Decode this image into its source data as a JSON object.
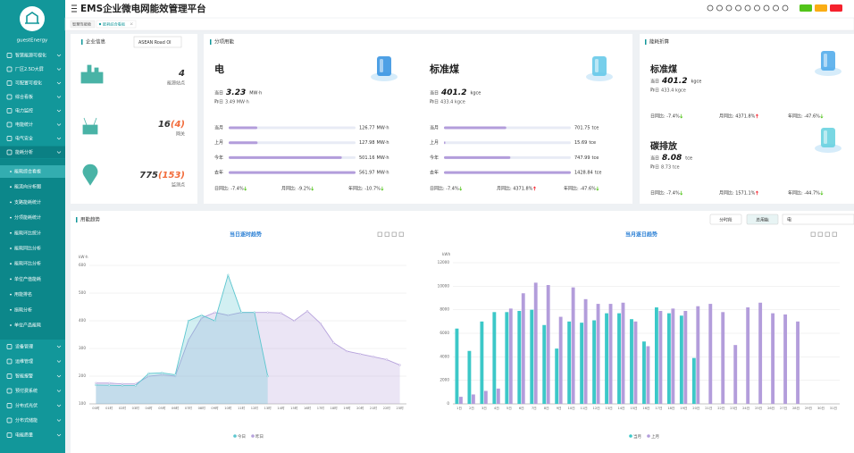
{
  "sidebar": {
    "user": "guestEnergy",
    "menu": [
      "智慧能源可视化",
      "厂区2.5D大屏",
      "可配置可视化",
      "综合看板",
      "电力监控",
      "电能统计",
      "电气安全",
      "能耗分析"
    ],
    "submenu": [
      "能耗综合看板",
      "能流向分析图",
      "支路能耗统计",
      "分项能耗统计",
      "能耗环比统计",
      "能耗同比分析",
      "能耗环比分析",
      "单位产值能耗",
      "用能排名",
      "损耗分析",
      "单位产品能耗"
    ],
    "menu2": [
      "设备管理",
      "运维管理",
      "智能报警",
      "预付费系统",
      "分布式光伏",
      "分布式储能",
      "电能质量"
    ]
  },
  "header": {
    "title": "EMS企业微电网能效管理平台",
    "tabs": [
      "智慧驾驶舱",
      "能耗综合看板"
    ]
  },
  "enterprise": {
    "title": "企业信息",
    "select": "ASEAN Road OI",
    "stats": [
      {
        "value": "4",
        "label": "能源站点"
      },
      {
        "value": "16",
        "extra": "(4)",
        "label": "网关"
      },
      {
        "value": "775",
        "extra": "(153)",
        "label": "监测点"
      }
    ]
  },
  "subitem": {
    "title": "分项用能",
    "groups": [
      {
        "name": "电",
        "today_label": "当日",
        "today": "3.23",
        "unit": "MW·h",
        "yesterday_label": "昨日",
        "yesterday": "3.49 MW·h",
        "row_unit": "MW·h",
        "rows": [
          {
            "label": "当月",
            "value": 126.77
          },
          {
            "label": "上月",
            "value": 127.98
          },
          {
            "label": "今年",
            "value": 501.16
          },
          {
            "label": "去年",
            "value": 561.97
          }
        ],
        "compare": [
          {
            "label": "日同比:",
            "value": "-7.4%"
          },
          {
            "label": "月同比:",
            "value": "-9.2%"
          },
          {
            "label": "年同比:",
            "value": "-10.7%"
          }
        ]
      },
      {
        "name": "标准煤",
        "today_label": "当日",
        "today": "401.2",
        "unit": "kgce",
        "yesterday_label": "昨日",
        "yesterday": "433.4 kgce",
        "row_unit": "tce",
        "rows": [
          {
            "label": "当月",
            "value": 701.75
          },
          {
            "label": "上月",
            "value": 15.69
          },
          {
            "label": "今年",
            "value": 747.99
          },
          {
            "label": "去年",
            "value": 1428.84
          }
        ],
        "compare": [
          {
            "label": "日同比:",
            "value": "-7.4%"
          },
          {
            "label": "月同比:",
            "value": "4371.8%"
          },
          {
            "label": "年同比:",
            "value": "-47.6%"
          }
        ]
      }
    ]
  },
  "conversion": {
    "title": "能耗折算",
    "groups": [
      {
        "name": "标准煤",
        "today_label": "当日",
        "today": "401.2",
        "unit": "kgce",
        "yesterday_label": "昨日",
        "yesterday": "433.4 kgce",
        "compare": [
          {
            "label": "日同比:",
            "value": "-7.4%"
          },
          {
            "label": "月同比:",
            "value": "4371.8%"
          },
          {
            "label": "年同比:",
            "value": "-47.6%"
          }
        ]
      },
      {
        "name": "碳排放",
        "today_label": "当日",
        "today": "8.08",
        "unit": "tce",
        "yesterday_label": "昨日",
        "yesterday": "8.73 tce",
        "compare": [
          {
            "label": "日同比:",
            "value": "-7.4%"
          },
          {
            "label": "月同比:",
            "value": "1571.1%"
          },
          {
            "label": "年同比:",
            "value": "-44.7%"
          }
        ]
      }
    ]
  },
  "trend": {
    "title": "用能趋势",
    "buttons": [
      "分时段",
      "总用能"
    ],
    "select": "电"
  },
  "chart_data": [
    {
      "type": "line",
      "title": "当日逐时趋势",
      "y_label": "kW·h",
      "categories": [
        "00时",
        "01时",
        "02时",
        "03时",
        "04时",
        "05时",
        "06时",
        "07时",
        "08时",
        "09时",
        "10时",
        "11时",
        "12时",
        "13时",
        "14时",
        "15时",
        "16时",
        "17时",
        "18时",
        "19时",
        "20时",
        "21时",
        "22时",
        "23时"
      ],
      "series": [
        {
          "name": "今日",
          "color": "#5cc6cf",
          "values": [
            168,
            167,
            166,
            166,
            210,
            212,
            205,
            400,
            420,
            400,
            565,
            430,
            430,
            200,
            null,
            null,
            null,
            null,
            null,
            null,
            null,
            null,
            null,
            null
          ]
        },
        {
          "name": "昨日",
          "color": "#b6a2dc",
          "values": [
            175,
            175,
            172,
            172,
            200,
            205,
            200,
            330,
            410,
            430,
            420,
            430,
            430,
            430,
            428,
            400,
            435,
            390,
            320,
            290,
            280,
            270,
            260,
            240
          ]
        }
      ],
      "ylim": [
        100,
        600
      ],
      "yticks": [
        100,
        200,
        300,
        400,
        500,
        600
      ],
      "grid": true
    },
    {
      "type": "bar",
      "title": "当月逐日趋势",
      "y_label": "kWh",
      "categories": [
        "1日",
        "2日",
        "3日",
        "4日",
        "5日",
        "6日",
        "7日",
        "8日",
        "9日",
        "10日",
        "11日",
        "12日",
        "13日",
        "14日",
        "15日",
        "16日",
        "17日",
        "18日",
        "19日",
        "20日",
        "21日",
        "22日",
        "23日",
        "24日",
        "25日",
        "26日",
        "27日",
        "28日",
        "29日",
        "30日",
        "31日"
      ],
      "series": [
        {
          "name": "当月",
          "color": "#3cc8c8",
          "values": [
            6400,
            4500,
            7000,
            7800,
            7800,
            7900,
            8000,
            6700,
            4700,
            7000,
            6900,
            7100,
            7700,
            7700,
            7200,
            5300,
            8200,
            7700,
            7500,
            3900,
            null,
            null,
            null,
            null,
            null,
            null,
            null,
            null,
            null,
            null,
            null
          ]
        },
        {
          "name": "上月",
          "color": "#b39ddb",
          "values": [
            600,
            800,
            1100,
            1300,
            8100,
            9400,
            10300,
            10100,
            7400,
            9900,
            8900,
            8500,
            8500,
            8600,
            7000,
            4900,
            7900,
            8100,
            7900,
            8300,
            8500,
            7800,
            5000,
            8200,
            8600,
            7700,
            7600,
            7000,
            null,
            null,
            null
          ]
        }
      ],
      "ylim": [
        0,
        12000
      ],
      "yticks": [
        0,
        2000,
        4000,
        6000,
        8000,
        10000,
        12000
      ],
      "grid": true
    }
  ]
}
